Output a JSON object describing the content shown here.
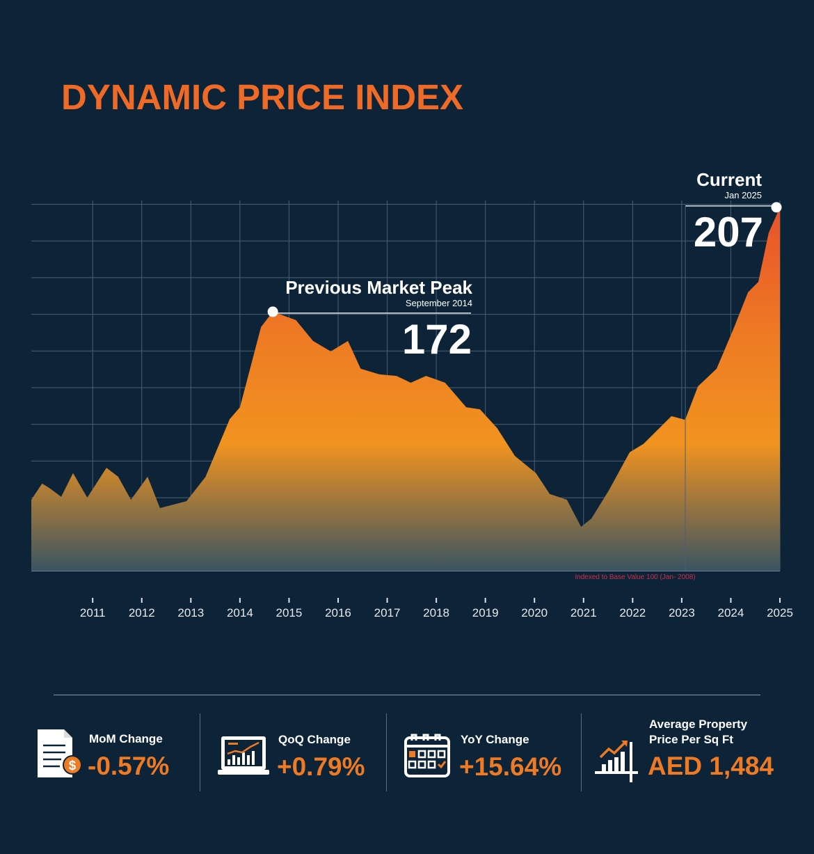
{
  "chart_data": {
    "type": "area",
    "title": "DYNAMIC PRICE INDEX",
    "x": [
      2009.75,
      2009.97,
      2010.11,
      2010.36,
      2010.6,
      2010.89,
      2011.28,
      2011.52,
      2011.78,
      2012.12,
      2012.37,
      2012.91,
      2013.3,
      2013.79,
      2014.0,
      2014.43,
      2014.67,
      2015.14,
      2015.49,
      2015.85,
      2016.2,
      2016.46,
      2016.84,
      2017.19,
      2017.48,
      2017.79,
      2018.18,
      2018.61,
      2018.89,
      2019.24,
      2019.6,
      2020.03,
      2020.31,
      2020.66,
      2020.95,
      2021.16,
      2021.51,
      2021.94,
      2022.22,
      2022.79,
      2023.07,
      2023.33,
      2023.71,
      2024.07,
      2024.35,
      2024.56,
      2024.77,
      2025
    ],
    "values": [
      109,
      114.4,
      113,
      110,
      117.9,
      109.7,
      119.7,
      116.7,
      109,
      116.7,
      106.2,
      108.5,
      116.7,
      136,
      140,
      166.9,
      172,
      169.2,
      162.2,
      158.7,
      162.2,
      152.9,
      151,
      150.5,
      148.2,
      150.5,
      148.2,
      140,
      139.3,
      133,
      123.7,
      117.9,
      110.9,
      109,
      99.9,
      102.7,
      112,
      124.9,
      127.7,
      137,
      135.8,
      147,
      152.9,
      166.9,
      178.5,
      182,
      198.4,
      207
    ],
    "xlim": [
      2009.75,
      2025
    ],
    "xticks": [
      2011,
      2012,
      2013,
      2014,
      2015,
      2016,
      2017,
      2018,
      2019,
      2020,
      2021,
      2022,
      2023,
      2024,
      2025
    ],
    "ylim": [
      85.2,
      209.3
    ],
    "grid": true,
    "color": "#ee7a24",
    "note": "Indexed to Base Value 100  (Jan- 2008)",
    "annotations": [
      {
        "label": "Previous Market Peak",
        "date": "September 2014",
        "value": 172
      },
      {
        "label": "Current",
        "date": "Jan 2025",
        "value": 207
      }
    ]
  },
  "stats": [
    {
      "label": "MoM Change",
      "value": "-0.57%"
    },
    {
      "label": "QoQ Change",
      "value": "+0.79%"
    },
    {
      "label": "YoY Change",
      "value": "+15.64%"
    },
    {
      "label": "Average Property Price Per Sq Ft",
      "value": "AED 1,484"
    }
  ]
}
